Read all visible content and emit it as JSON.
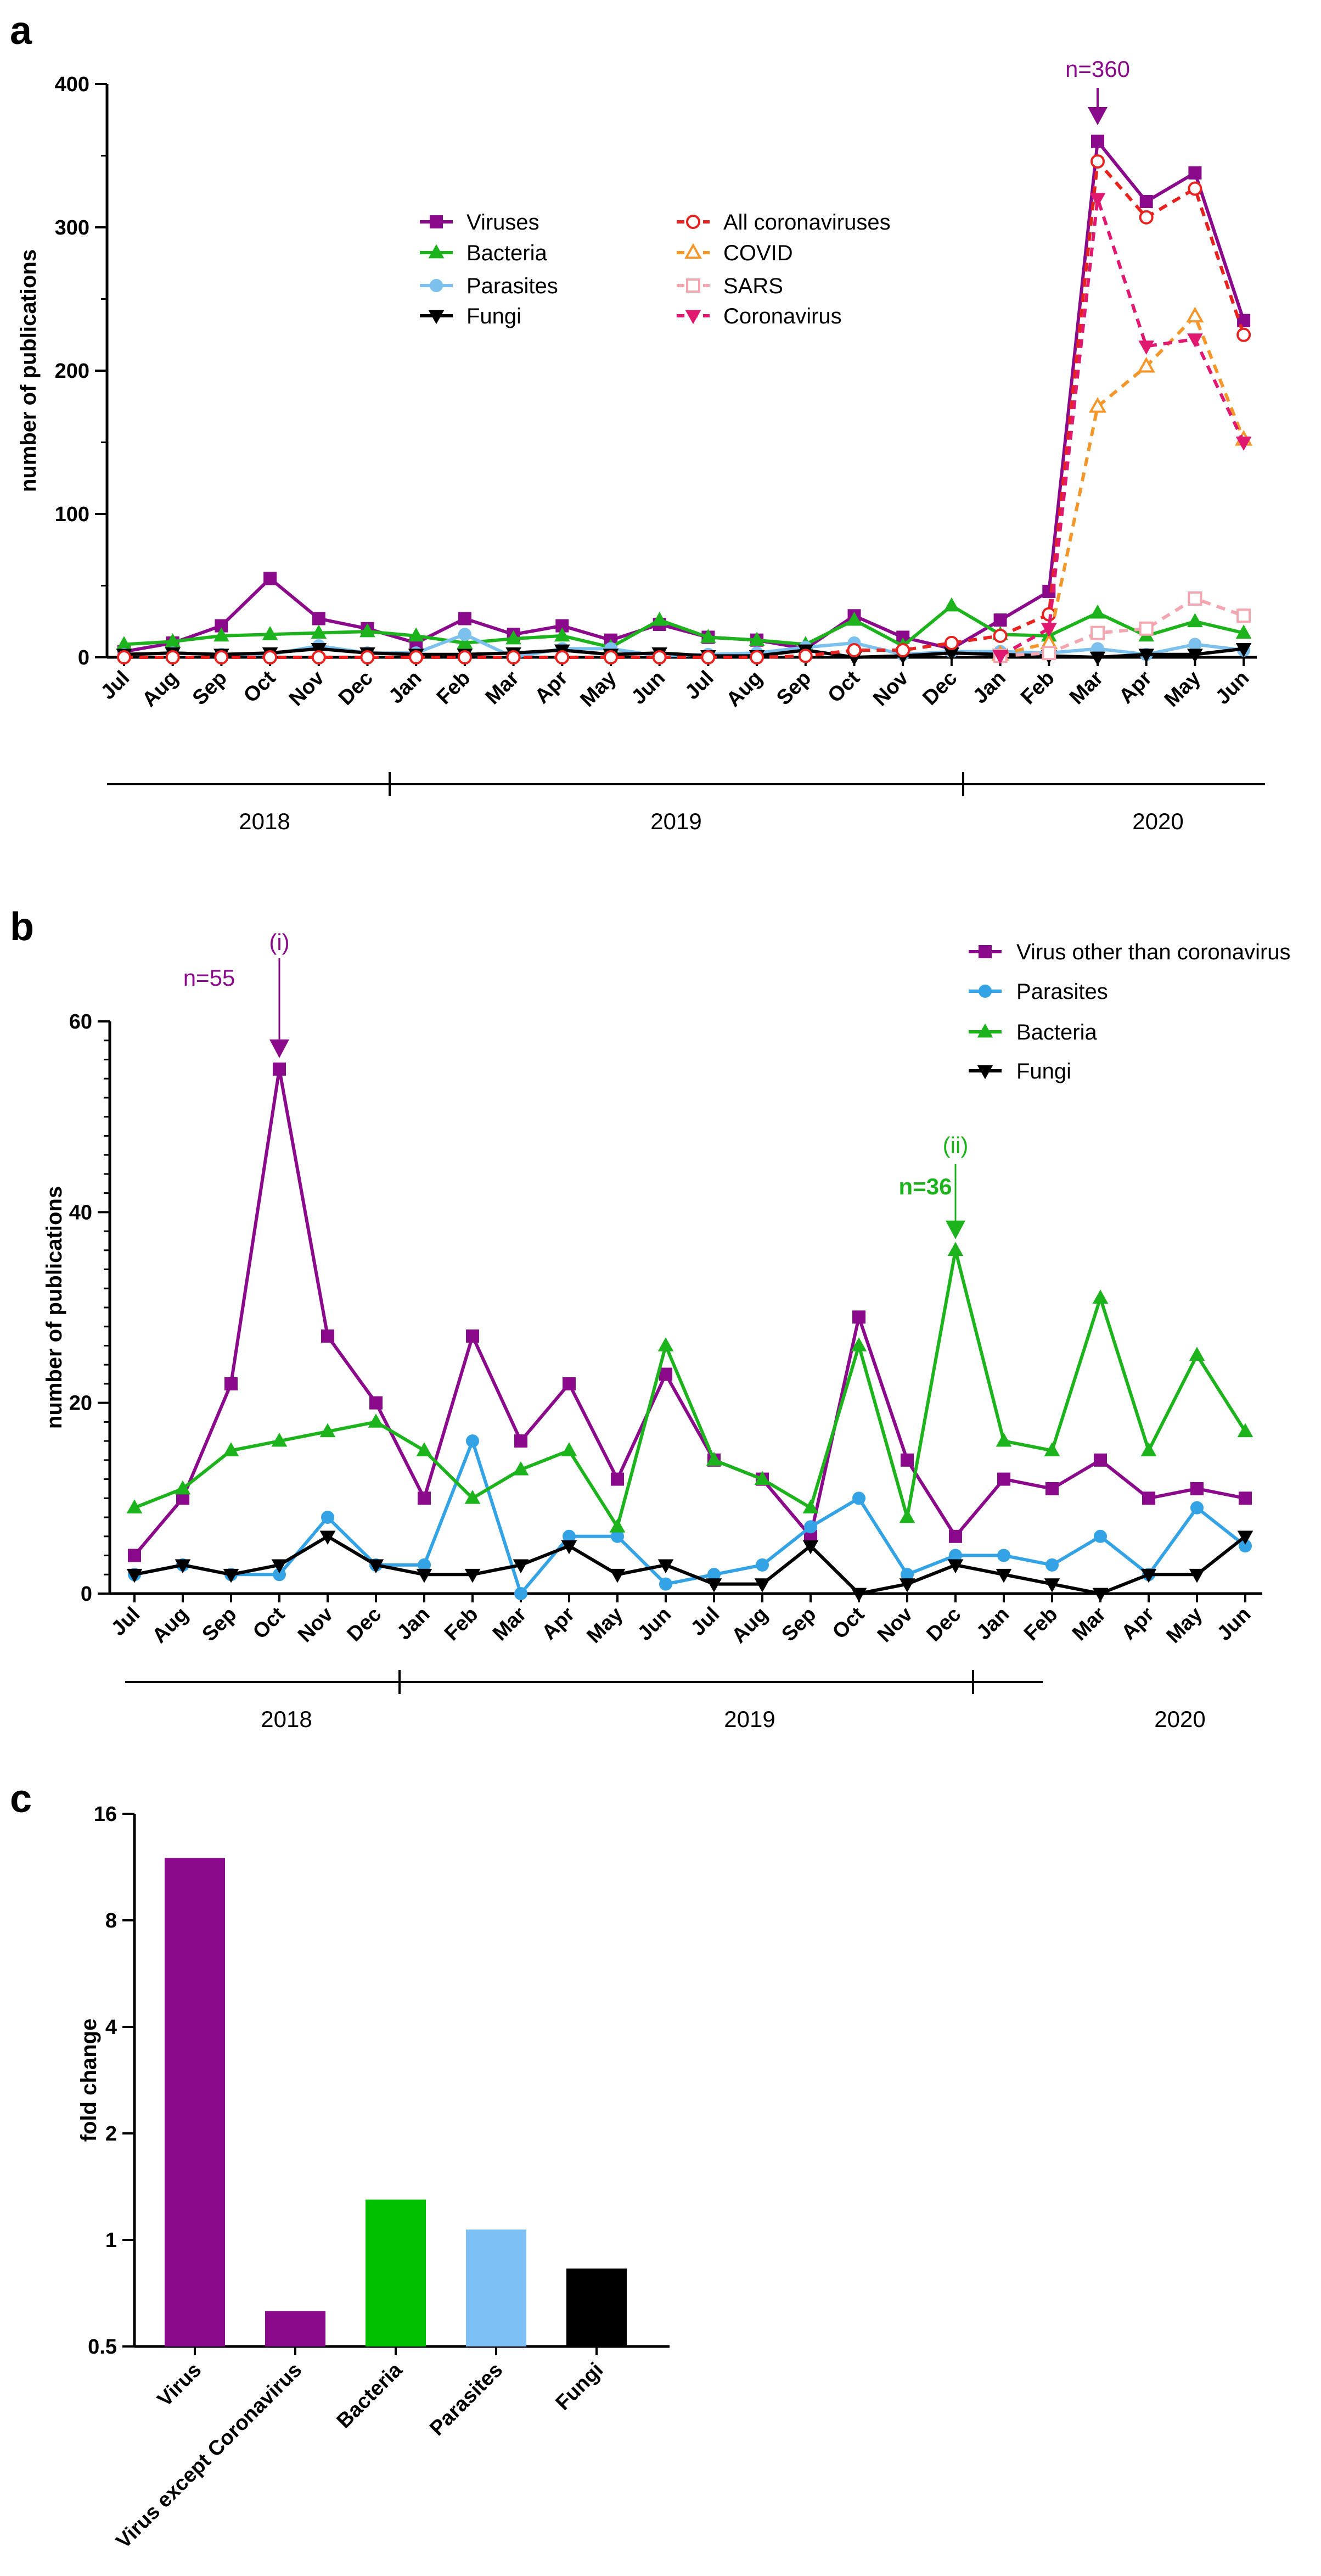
{
  "chart_data": [
    {
      "panel": "a",
      "type": "line",
      "ylabel": "number of publications",
      "ylim": [
        0,
        400
      ],
      "yticks": [
        "0",
        "100",
        "200",
        "300",
        "400"
      ],
      "categories": [
        "Jul",
        "Aug",
        "Sep",
        "Oct",
        "Nov",
        "Dec",
        "Jan",
        "Feb",
        "Mar",
        "Apr",
        "May",
        "Jun",
        "Jul",
        "Aug",
        "Sep",
        "Oct",
        "Nov",
        "Dec",
        "Jan",
        "Feb",
        "Mar",
        "Apr",
        "May",
        "Jun"
      ],
      "years": [
        "2018",
        "2019",
        "2020"
      ],
      "annotation": {
        "text": "n=360",
        "series": "Viruses",
        "index": 20
      },
      "series": [
        {
          "name": "Viruses",
          "color": "#8B0A8B",
          "marker": "square",
          "dashed": false,
          "filled": true,
          "values": [
            4,
            10,
            22,
            55,
            27,
            20,
            10,
            27,
            16,
            22,
            12,
            23,
            14,
            12,
            6,
            29,
            14,
            6,
            26,
            46,
            360,
            318,
            338,
            235
          ]
        },
        {
          "name": "Bacteria",
          "color": "#1DB31D",
          "marker": "triangle-up",
          "dashed": false,
          "filled": true,
          "values": [
            9,
            11,
            15,
            16,
            17,
            18,
            15,
            10,
            13,
            15,
            7,
            26,
            14,
            12,
            9,
            26,
            8,
            36,
            16,
            15,
            31,
            15,
            25,
            17
          ]
        },
        {
          "name": "Parasites",
          "color": "#7CC0EE",
          "marker": "circle",
          "dashed": false,
          "filled": true,
          "values": [
            2,
            3,
            2,
            2,
            8,
            3,
            3,
            16,
            0,
            6,
            6,
            1,
            2,
            3,
            7,
            10,
            2,
            4,
            4,
            3,
            6,
            2,
            9,
            5
          ]
        },
        {
          "name": "Fungi",
          "color": "#000000",
          "marker": "triangle-down",
          "dashed": false,
          "filled": true,
          "values": [
            2,
            3,
            2,
            3,
            6,
            3,
            2,
            2,
            3,
            5,
            2,
            3,
            1,
            1,
            5,
            0,
            1,
            3,
            2,
            1,
            0,
            2,
            2,
            6
          ]
        },
        {
          "name": "All coronaviruses",
          "color": "#E8221E",
          "marker": "circle",
          "dashed": true,
          "filled": false,
          "values": [
            0,
            0,
            0,
            0,
            0,
            0,
            0,
            0,
            0,
            0,
            0,
            0,
            0,
            0,
            1,
            5,
            5,
            10,
            15,
            30,
            346,
            307,
            327,
            225
          ]
        },
        {
          "name": "COVID",
          "color": "#F5962A",
          "marker": "triangle-up",
          "dashed": true,
          "filled": false,
          "values": [
            null,
            null,
            null,
            null,
            null,
            null,
            null,
            null,
            null,
            null,
            null,
            null,
            null,
            null,
            null,
            null,
            null,
            null,
            2,
            10,
            175,
            203,
            238,
            152
          ]
        },
        {
          "name": "SARS",
          "color": "#F4A6B0",
          "marker": "square",
          "dashed": true,
          "filled": false,
          "values": [
            null,
            null,
            null,
            null,
            null,
            null,
            null,
            null,
            null,
            null,
            null,
            null,
            null,
            null,
            null,
            null,
            null,
            null,
            1,
            3,
            17,
            20,
            41,
            29
          ]
        },
        {
          "name": "Coronavirus",
          "color": "#E0186F",
          "marker": "triangle-down",
          "dashed": true,
          "filled": true,
          "values": [
            null,
            null,
            null,
            null,
            null,
            null,
            null,
            null,
            null,
            null,
            null,
            null,
            null,
            null,
            null,
            null,
            null,
            null,
            1,
            20,
            320,
            217,
            222,
            150
          ]
        }
      ]
    },
    {
      "panel": "b",
      "type": "line",
      "ylabel": "number of publications",
      "ylim": [
        0,
        60
      ],
      "yticks": [
        "0",
        "20",
        "40",
        "60"
      ],
      "categories": [
        "Jul",
        "Aug",
        "Sep",
        "Oct",
        "Nov",
        "Dec",
        "Jan",
        "Feb",
        "Mar",
        "Apr",
        "May",
        "Jun",
        "Jul",
        "Aug",
        "Sep",
        "Oct",
        "Nov",
        "Dec",
        "Jan",
        "Feb",
        "Mar",
        "Apr",
        "May",
        "Jun"
      ],
      "years": [
        "2018",
        "2019",
        "2020"
      ],
      "annotations": [
        {
          "label": "(i)",
          "text": "n=55",
          "series": "Virus other than coronavirus",
          "index": 3,
          "color": "#8B0A8B"
        },
        {
          "label": "(ii)",
          "text": "n=36",
          "series": "Bacteria",
          "index": 17,
          "color": "#1DB31D"
        }
      ],
      "series": [
        {
          "name": "Virus other than coronavirus",
          "color": "#8B0A8B",
          "marker": "square",
          "values": [
            4,
            10,
            22,
            55,
            27,
            20,
            10,
            27,
            16,
            22,
            12,
            23,
            14,
            12,
            6,
            29,
            14,
            6,
            12,
            11,
            14,
            10,
            11,
            10
          ]
        },
        {
          "name": "Parasites",
          "color": "#33A3E5",
          "marker": "circle",
          "values": [
            2,
            3,
            2,
            2,
            8,
            3,
            3,
            16,
            0,
            6,
            6,
            1,
            2,
            3,
            7,
            10,
            2,
            4,
            4,
            3,
            6,
            2,
            9,
            5
          ]
        },
        {
          "name": "Bacteria",
          "color": "#1DB31D",
          "marker": "triangle-up",
          "values": [
            9,
            11,
            15,
            16,
            17,
            18,
            15,
            10,
            13,
            15,
            7,
            26,
            14,
            12,
            9,
            26,
            8,
            36,
            16,
            15,
            31,
            15,
            25,
            17
          ]
        },
        {
          "name": "Fungi",
          "color": "#000000",
          "marker": "triangle-down",
          "values": [
            2,
            3,
            2,
            3,
            6,
            3,
            2,
            2,
            3,
            5,
            2,
            3,
            1,
            1,
            5,
            0,
            1,
            3,
            2,
            1,
            0,
            2,
            2,
            6
          ]
        }
      ]
    },
    {
      "panel": "c",
      "type": "bar",
      "ylabel": "fold change",
      "yscale": "log2",
      "ylim": [
        0.5,
        16
      ],
      "yticks": [
        {
          "value": 0.5,
          "label": "0.5"
        },
        {
          "value": 1,
          "label": "1"
        },
        {
          "value": 2,
          "label": "2"
        },
        {
          "value": 4,
          "label": "4"
        },
        {
          "value": 8,
          "label": "8"
        },
        {
          "value": 16,
          "label": "16"
        }
      ],
      "categories": [
        "Virus",
        "Virus except Coronavirus",
        "Bacteria",
        "Parasites",
        "Fungi"
      ],
      "values": [
        12,
        0.63,
        1.3,
        1.07,
        0.83
      ],
      "colors": [
        "#8B0A8B",
        "#8B0A8B",
        "#00C000",
        "#7CC0F5",
        "#000000"
      ]
    }
  ]
}
